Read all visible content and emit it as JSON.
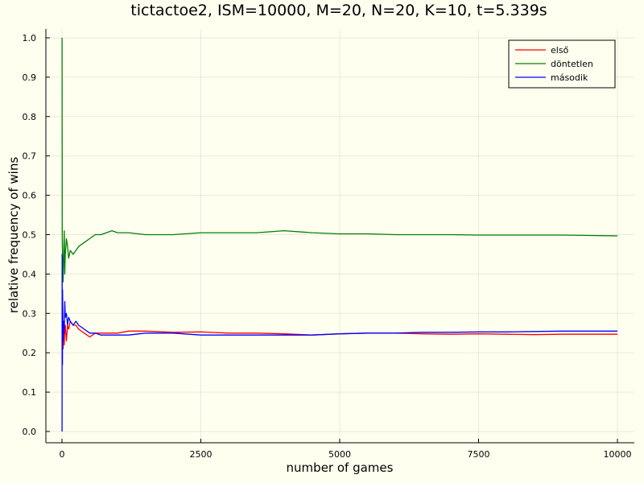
{
  "chart_data": {
    "type": "line",
    "title": "tictactoe2, ISM=10000, M=20, N=20, K=10, t=5.339s",
    "xlabel": "number of games",
    "ylabel": "relative frequency of wins",
    "xlim": [
      0,
      10000
    ],
    "ylim": [
      0.0,
      1.0
    ],
    "xticks": [
      0,
      2500,
      5000,
      7500,
      10000
    ],
    "xtick_labels": [
      "0",
      "2500",
      "5000",
      "7500",
      "10000"
    ],
    "yticks": [
      0.0,
      0.1,
      0.2,
      0.3,
      0.4,
      0.5,
      0.6,
      0.7,
      0.8,
      0.9,
      1.0
    ],
    "ytick_labels": [
      "0.0",
      "0.1",
      "0.2",
      "0.3",
      "0.4",
      "0.5",
      "0.6",
      "0.7",
      "0.8",
      "0.9",
      "1.0"
    ],
    "grid": true,
    "legend_position": "top-right",
    "colors": {
      "background": "#fffff0",
      "első": "#ff0000",
      "döntetlen": "#008000",
      "második": "#0000ff"
    },
    "series": [
      {
        "name": "első",
        "color": "#ff0000",
        "x": [
          1,
          10,
          20,
          30,
          40,
          50,
          60,
          80,
          100,
          120,
          150,
          200,
          250,
          300,
          400,
          500,
          600,
          700,
          800,
          1000,
          1200,
          1500,
          2000,
          2500,
          3000,
          3500,
          4000,
          4500,
          5000,
          5500,
          6000,
          6500,
          7000,
          7500,
          8000,
          8500,
          9000,
          9500,
          10000
        ],
        "y": [
          0.25,
          0.28,
          0.21,
          0.27,
          0.22,
          0.26,
          0.27,
          0.23,
          0.27,
          0.26,
          0.28,
          0.27,
          0.27,
          0.26,
          0.25,
          0.24,
          0.25,
          0.25,
          0.25,
          0.25,
          0.255,
          0.255,
          0.252,
          0.253,
          0.25,
          0.25,
          0.248,
          0.245,
          0.248,
          0.25,
          0.25,
          0.248,
          0.247,
          0.248,
          0.247,
          0.246,
          0.247,
          0.247,
          0.247
        ]
      },
      {
        "name": "döntetlen",
        "color": "#008000",
        "x": [
          1,
          5,
          10,
          15,
          20,
          30,
          40,
          50,
          60,
          80,
          100,
          120,
          150,
          200,
          250,
          300,
          400,
          500,
          600,
          700,
          800,
          900,
          1000,
          1200,
          1500,
          2000,
          2500,
          3000,
          3500,
          4000,
          4500,
          5000,
          5500,
          6000,
          6500,
          7000,
          7500,
          8000,
          8500,
          9000,
          9500,
          10000
        ],
        "y": [
          1.0,
          0.5,
          0.45,
          0.42,
          0.38,
          0.44,
          0.51,
          0.4,
          0.45,
          0.49,
          0.47,
          0.44,
          0.46,
          0.45,
          0.46,
          0.47,
          0.48,
          0.49,
          0.5,
          0.5,
          0.505,
          0.51,
          0.505,
          0.505,
          0.5,
          0.5,
          0.505,
          0.505,
          0.505,
          0.51,
          0.505,
          0.502,
          0.502,
          0.5,
          0.5,
          0.5,
          0.499,
          0.499,
          0.499,
          0.499,
          0.498,
          0.497
        ]
      },
      {
        "name": "második",
        "color": "#0000ff",
        "x": [
          1,
          3,
          5,
          8,
          10,
          15,
          20,
          30,
          40,
          50,
          60,
          80,
          100,
          120,
          150,
          200,
          250,
          300,
          400,
          500,
          600,
          700,
          800,
          1000,
          1200,
          1500,
          2000,
          2500,
          3000,
          3500,
          4000,
          4500,
          5000,
          5500,
          6000,
          6500,
          7000,
          7500,
          8000,
          8500,
          9000,
          9500,
          10000
        ],
        "y": [
          0.0,
          0.45,
          0.3,
          0.17,
          0.36,
          0.31,
          0.23,
          0.28,
          0.25,
          0.33,
          0.29,
          0.3,
          0.27,
          0.29,
          0.28,
          0.27,
          0.28,
          0.27,
          0.26,
          0.25,
          0.25,
          0.245,
          0.245,
          0.245,
          0.245,
          0.25,
          0.25,
          0.245,
          0.245,
          0.245,
          0.245,
          0.245,
          0.248,
          0.25,
          0.25,
          0.252,
          0.252,
          0.253,
          0.253,
          0.254,
          0.255,
          0.255,
          0.255
        ]
      }
    ]
  }
}
